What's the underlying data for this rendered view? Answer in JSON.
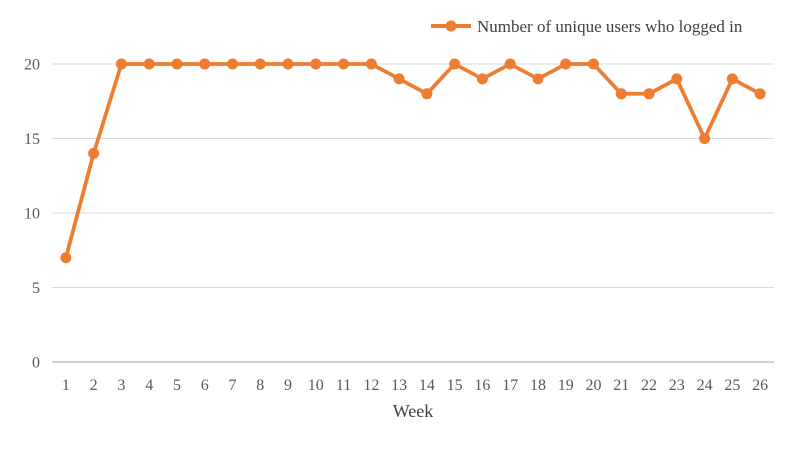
{
  "chart_data": {
    "type": "line",
    "title": "",
    "xlabel": "Week",
    "ylabel": "",
    "x": [
      1,
      2,
      3,
      4,
      5,
      6,
      7,
      8,
      9,
      10,
      11,
      12,
      13,
      14,
      15,
      16,
      17,
      18,
      19,
      20,
      21,
      22,
      23,
      24,
      25,
      26
    ],
    "series": [
      {
        "name": "Number of unique users who logged in",
        "values": [
          7,
          14,
          20,
          20,
          20,
          20,
          20,
          20,
          20,
          20,
          20,
          20,
          19,
          18,
          20,
          19,
          20,
          19,
          20,
          20,
          18,
          18,
          19,
          15,
          19,
          18
        ]
      }
    ],
    "ylim": [
      0,
      20
    ],
    "yticks": [
      0,
      5,
      10,
      15,
      20
    ],
    "grid": true,
    "legend_position": "top-right",
    "marker": "circle"
  },
  "colors": {
    "series_line": "#ED7D31",
    "marker_fill": "#ED7D31",
    "gridline": "#D9D9D9",
    "axis_line": "#D0CECE",
    "tick_label": "#595959",
    "axis_title": "#404040",
    "legend_text": "#404040",
    "background": "#FFFFFF"
  }
}
